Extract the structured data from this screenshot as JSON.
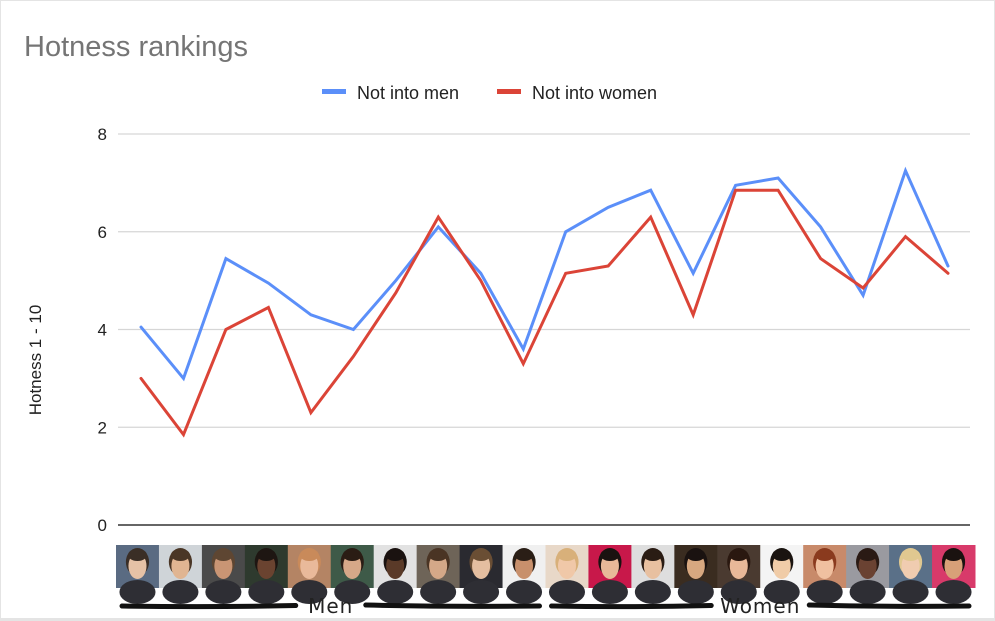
{
  "chart_data": {
    "type": "line",
    "title": "Hotness rankings",
    "ylabel": "Hotness 1 - 10",
    "xlabel": "",
    "ylim": [
      0,
      8
    ],
    "yticks": [
      0,
      2,
      4,
      6,
      8
    ],
    "grid": true,
    "legend_position": "top",
    "x": [
      1,
      2,
      3,
      4,
      5,
      6,
      7,
      8,
      9,
      10,
      11,
      12,
      13,
      14,
      15,
      16,
      17,
      18,
      19,
      20
    ],
    "series": [
      {
        "name": "Not into men",
        "color": "#5b8ff9",
        "values": [
          4.05,
          3.0,
          5.45,
          4.95,
          4.3,
          4.0,
          5.0,
          6.1,
          5.15,
          3.6,
          6.0,
          6.5,
          6.85,
          5.15,
          6.95,
          7.1,
          6.1,
          4.7,
          7.25,
          5.3
        ]
      },
      {
        "name": "Not into women",
        "color": "#db4437",
        "values": [
          3.0,
          1.85,
          4.0,
          4.45,
          2.3,
          3.45,
          4.75,
          6.3,
          5.0,
          3.3,
          5.15,
          5.3,
          6.3,
          4.3,
          6.85,
          6.85,
          5.45,
          4.85,
          5.9,
          5.15
        ]
      }
    ],
    "groups": [
      {
        "label": "Men",
        "from": 1,
        "to": 10
      },
      {
        "label": "Women",
        "from": 11,
        "to": 20
      }
    ]
  },
  "x_thumbnails": [
    {
      "icon": "face-photo",
      "bg": "#5a6b82",
      "skin": "#e6c2a6",
      "hair": "#3a2e26"
    },
    {
      "icon": "face-photo",
      "bg": "#cfd4d8",
      "skin": "#e0b592",
      "hair": "#4a3626"
    },
    {
      "icon": "face-photo",
      "bg": "#4a4a4a",
      "skin": "#c99574",
      "hair": "#5e4632"
    },
    {
      "icon": "face-photo",
      "bg": "#2e3a2e",
      "skin": "#6a4330",
      "hair": "#1e1612"
    },
    {
      "icon": "face-photo",
      "bg": "#b48464",
      "skin": "#e9b99a",
      "hair": "#c98a5a"
    },
    {
      "icon": "face-photo",
      "bg": "#3e5a48",
      "skin": "#d6a888",
      "hair": "#2a1c14"
    },
    {
      "icon": "face-photo",
      "bg": "#e2e2e2",
      "skin": "#5a3a28",
      "hair": "#1a1210"
    },
    {
      "icon": "face-photo",
      "bg": "#6e6458",
      "skin": "#d4a888",
      "hair": "#4a3424"
    },
    {
      "icon": "face-photo",
      "bg": "#2a2a30",
      "skin": "#e4bea0",
      "hair": "#6a4e34"
    },
    {
      "icon": "face-photo",
      "bg": "#f0f0f0",
      "skin": "#c8906c",
      "hair": "#2a1e16"
    },
    {
      "icon": "face-photo",
      "bg": "#e8d8c8",
      "skin": "#f0c8a8",
      "hair": "#d8b07a"
    },
    {
      "icon": "face-photo",
      "bg": "#c8184a",
      "skin": "#e8b898",
      "hair": "#1a1210"
    },
    {
      "icon": "face-photo",
      "bg": "#dedede",
      "skin": "#e8c0a0",
      "hair": "#2a1c14"
    },
    {
      "icon": "face-photo",
      "bg": "#3a2c20",
      "skin": "#d8a880",
      "hair": "#1a1210"
    },
    {
      "icon": "face-photo",
      "bg": "#4a3a30",
      "skin": "#e8b898",
      "hair": "#2a1810"
    },
    {
      "icon": "face-photo",
      "bg": "#f4f4f4",
      "skin": "#f0cca8",
      "hair": "#1a1410"
    },
    {
      "icon": "face-photo",
      "bg": "#c88a6a",
      "skin": "#f0c0a0",
      "hair": "#8a3a1e"
    },
    {
      "icon": "face-photo",
      "bg": "#9a9aa0",
      "skin": "#6a4232",
      "hair": "#2a1a14"
    },
    {
      "icon": "face-photo",
      "bg": "#5a7088",
      "skin": "#f0ccb0",
      "hair": "#e0c890"
    },
    {
      "icon": "face-photo",
      "bg": "#d83a6a",
      "skin": "#d8a078",
      "hair": "#1a1210"
    }
  ],
  "colors": {
    "grid": "#d6d6d6",
    "baseline": "#333333",
    "group_underline": "#111111"
  }
}
